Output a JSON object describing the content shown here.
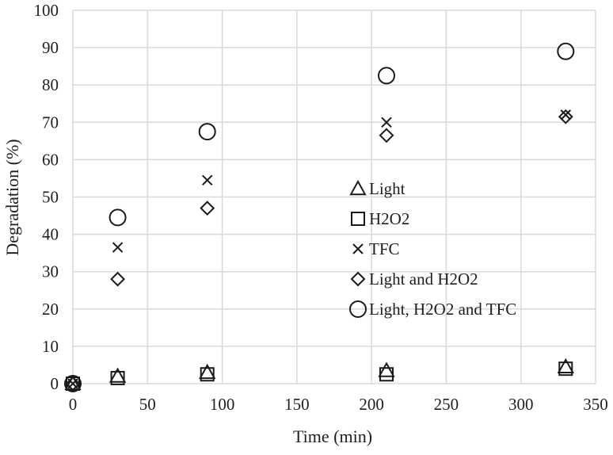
{
  "chart_data": {
    "type": "scatter",
    "title": "",
    "xlabel": "Time (min)",
    "ylabel": "Degradation (%)",
    "xlim": [
      0,
      350
    ],
    "ylim": [
      0,
      100
    ],
    "xticks": [
      0,
      50,
      100,
      150,
      200,
      250,
      300,
      350
    ],
    "yticks": [
      0,
      10,
      20,
      30,
      40,
      50,
      60,
      70,
      80,
      90,
      100
    ],
    "grid": true,
    "legend_position": "right-center",
    "series": [
      {
        "name": "Light",
        "marker": "triangle",
        "x": [
          0,
          30,
          90,
          210,
          330
        ],
        "y": [
          0,
          2,
          3,
          3.5,
          4.5
        ]
      },
      {
        "name": "H2O2",
        "marker": "square",
        "x": [
          0,
          30,
          90,
          210,
          330
        ],
        "y": [
          0,
          1.5,
          2.5,
          2.5,
          4
        ]
      },
      {
        "name": "TFC",
        "marker": "x",
        "x": [
          0,
          30,
          90,
          210,
          330
        ],
        "y": [
          0,
          36.5,
          54.5,
          70,
          72
        ]
      },
      {
        "name": "Light and H2O2",
        "marker": "diamond",
        "x": [
          0,
          30,
          90,
          210,
          330
        ],
        "y": [
          0,
          28,
          47,
          66.5,
          71.5
        ]
      },
      {
        "name": "Light, H2O2 and TFC",
        "marker": "circle",
        "x": [
          0,
          30,
          90,
          210,
          330
        ],
        "y": [
          0,
          44.5,
          67.5,
          82.5,
          89
        ]
      }
    ]
  }
}
